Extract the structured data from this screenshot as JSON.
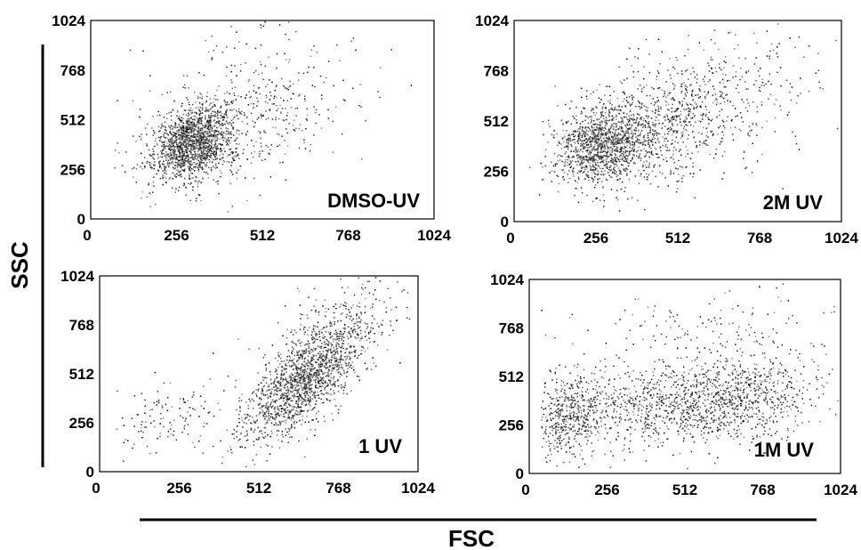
{
  "figure": {
    "xlabel": "FSC",
    "ylabel": "SSC"
  },
  "chart_data": [
    {
      "type": "scatter",
      "title": "",
      "label": "DMSO-UV",
      "xlim": [
        0,
        1024
      ],
      "ylim": [
        0,
        1024
      ],
      "xticks": [
        "0",
        "256",
        "512",
        "768",
        "1024"
      ],
      "yticks": [
        "0",
        "256",
        "512",
        "768",
        "1024"
      ],
      "point_color": "#000000",
      "clusters": [
        {
          "cx": 300,
          "cy": 390,
          "sx": 55,
          "sy": 95,
          "rho": 0.3,
          "n": 1400
        },
        {
          "cx": 420,
          "cy": 470,
          "sx": 130,
          "sy": 170,
          "rho": 0.3,
          "n": 500
        },
        {
          "cx": 500,
          "cy": 700,
          "sx": 200,
          "sy": 180,
          "rho": 0.0,
          "n": 110
        }
      ]
    },
    {
      "type": "scatter",
      "title": "",
      "label": "2M UV",
      "xlim": [
        0,
        1024
      ],
      "ylim": [
        0,
        1024
      ],
      "xticks": [
        "0",
        "256",
        "512",
        "768",
        "1024"
      ],
      "yticks": [
        "0",
        "256",
        "512",
        "768",
        "1024"
      ],
      "point_color": "#000000",
      "clusters": [
        {
          "cx": 280,
          "cy": 390,
          "sx": 70,
          "sy": 95,
          "rho": 0.2,
          "n": 1100
        },
        {
          "cx": 450,
          "cy": 470,
          "sx": 150,
          "sy": 160,
          "rho": 0.35,
          "n": 800
        },
        {
          "cx": 650,
          "cy": 700,
          "sx": 180,
          "sy": 170,
          "rho": 0.2,
          "n": 220
        }
      ]
    },
    {
      "type": "scatter",
      "title": "",
      "label": "1 UV",
      "xlim": [
        0,
        1024
      ],
      "ylim": [
        0,
        1024
      ],
      "xticks": [
        "0",
        "256",
        "512",
        "768",
        "1024"
      ],
      "yticks": [
        "0",
        "256",
        "512",
        "768",
        "1024"
      ],
      "point_color": "#000000",
      "clusters": [
        {
          "cx": 660,
          "cy": 480,
          "sx": 95,
          "sy": 160,
          "rho": 0.7,
          "n": 1500
        },
        {
          "cx": 760,
          "cy": 720,
          "sx": 110,
          "sy": 130,
          "rho": 0.4,
          "n": 250
        },
        {
          "cx": 230,
          "cy": 300,
          "sx": 90,
          "sy": 110,
          "rho": 0.3,
          "n": 130
        }
      ]
    },
    {
      "type": "scatter",
      "title": "",
      "label": "1M UV",
      "xlim": [
        0,
        1024
      ],
      "ylim": [
        0,
        1024
      ],
      "xticks": [
        "0",
        "256",
        "512",
        "768",
        "1024"
      ],
      "yticks": [
        "0",
        "256",
        "512",
        "768",
        "1024"
      ],
      "point_color": "#000000",
      "clusters": [
        {
          "cx": 130,
          "cy": 300,
          "sx": 55,
          "sy": 110,
          "rho": 0.2,
          "n": 450
        },
        {
          "cx": 690,
          "cy": 400,
          "sx": 120,
          "sy": 110,
          "rho": 0.2,
          "n": 700
        },
        {
          "cx": 420,
          "cy": 350,
          "sx": 170,
          "sy": 110,
          "rho": 0.0,
          "n": 700
        },
        {
          "cx": 620,
          "cy": 720,
          "sx": 200,
          "sy": 150,
          "rho": 0.0,
          "n": 200
        }
      ]
    }
  ]
}
